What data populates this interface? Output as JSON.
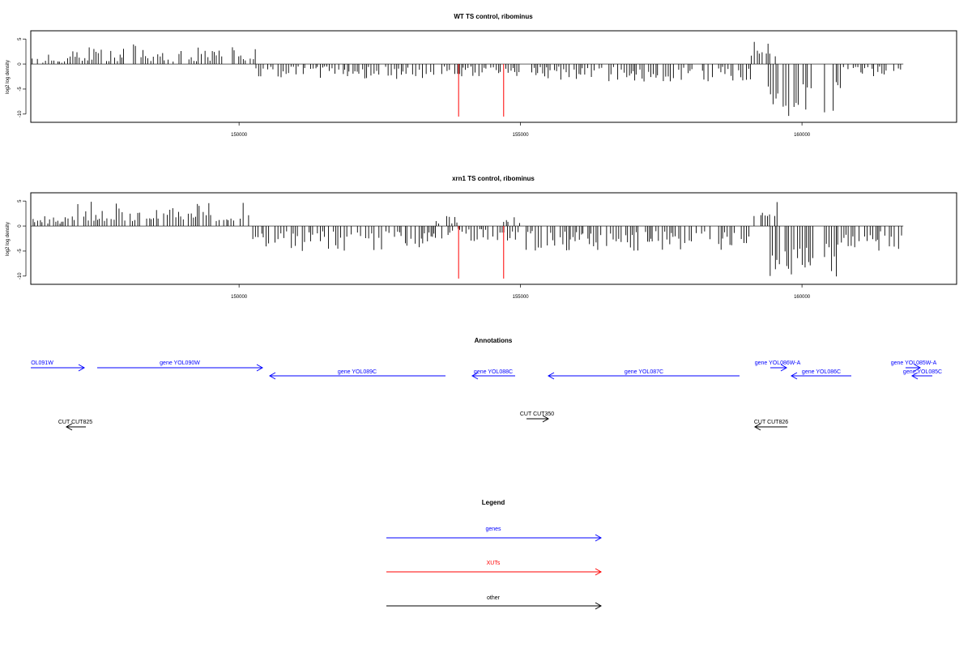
{
  "colors": {
    "gene": "#0000ff",
    "xut": "#ff0000",
    "other": "#000000",
    "bar": "#000000",
    "frame": "#000000"
  },
  "chart_data": [
    {
      "type": "bar",
      "title": "WT TS control, ribominus",
      "ylabel": "log2 log density",
      "ylim": [
        -11,
        6
      ],
      "xlim": [
        146300,
        162500
      ],
      "xticks": [
        150000,
        155000,
        160000
      ],
      "xtick_labels": [
        "150000",
        "155000",
        "160000"
      ],
      "yticks": [
        5,
        0,
        -5,
        -10
      ],
      "ytick_labels": [
        "5",
        "0",
        "-5",
        "-10"
      ],
      "plus_segments": [
        [
          146300,
          147000,
          0.25,
          2.0
        ],
        [
          147000,
          150300,
          0.5,
          4.0
        ],
        [
          159100,
          159600,
          1.5,
          4.8
        ]
      ],
      "minus_segments": [
        [
          150300,
          153500,
          -0.5,
          -3.0
        ],
        [
          153600,
          155000,
          -0.5,
          -2.5
        ],
        [
          155200,
          159100,
          -0.5,
          -3.5
        ],
        [
          159400,
          160200,
          -4.0,
          -10.5
        ],
        [
          160400,
          160700,
          -3.0,
          -10.0
        ],
        [
          160700,
          161800,
          -0.5,
          -3.0
        ]
      ],
      "xut_lines": [
        [
          153900,
          -10.5
        ],
        [
          154700,
          -10.5
        ]
      ]
    },
    {
      "type": "bar",
      "title": "xrn1 TS control, ribominus",
      "ylabel": "log2 log density",
      "ylim": [
        -11,
        6
      ],
      "xlim": [
        146300,
        162500
      ],
      "xticks": [
        150000,
        155000,
        160000
      ],
      "xtick_labels": [
        "150000",
        "155000",
        "160000"
      ],
      "yticks": [
        5,
        0,
        -5,
        -10
      ],
      "ytick_labels": [
        "5",
        "0",
        "-5",
        "-10"
      ],
      "plus_segments": [
        [
          146300,
          147000,
          0.4,
          2.0
        ],
        [
          147000,
          150300,
          1.0,
          5.0
        ],
        [
          153500,
          153900,
          0.5,
          2.5
        ],
        [
          154700,
          155000,
          0.5,
          2.0
        ],
        [
          159100,
          159600,
          2.0,
          5.5
        ]
      ],
      "minus_segments": [
        [
          150200,
          153600,
          -1.0,
          -5.0
        ],
        [
          153600,
          155000,
          -0.5,
          -3.0
        ],
        [
          155100,
          159100,
          -1.0,
          -5.0
        ],
        [
          159400,
          160200,
          -4.0,
          -10.5
        ],
        [
          160400,
          160700,
          -3.0,
          -10.5
        ],
        [
          160700,
          161800,
          -1.0,
          -5.0
        ]
      ],
      "xut_lines": [
        [
          153900,
          -10.5
        ],
        [
          154700,
          -10.5
        ]
      ]
    }
  ],
  "annotations": {
    "title": "Annotations",
    "genes": [
      {
        "label": "OL091W",
        "dir": "right",
        "row": 0
      },
      {
        "label": "gene YOL090W",
        "dir": "right",
        "row": 0
      },
      {
        "label": "gene YOL089C",
        "dir": "left",
        "row": 1
      },
      {
        "label": "gene YOL088C",
        "dir": "left",
        "row": 1
      },
      {
        "label": "gene YOL087C",
        "dir": "left",
        "row": 1
      },
      {
        "label": "gene YOL086W-A",
        "dir": "right",
        "row": 0
      },
      {
        "label": "gene YOL086C",
        "dir": "left",
        "row": 1
      },
      {
        "label": "gene YOL085W-A",
        "dir": "right",
        "row": 0
      },
      {
        "label": "gene YOL085C",
        "dir": "left",
        "row": 1
      }
    ],
    "cuts": [
      {
        "label": "CUT CUT825",
        "dir": "left"
      },
      {
        "label": "CUT CUT350",
        "dir": "right"
      },
      {
        "label": "CUT CUT826",
        "dir": "left"
      }
    ]
  },
  "legend": {
    "title": "Legend",
    "items": [
      {
        "label": "genes",
        "color": "#0000ff"
      },
      {
        "label": "XUTs",
        "color": "#ff0000"
      },
      {
        "label": "other",
        "color": "#000000"
      }
    ]
  }
}
